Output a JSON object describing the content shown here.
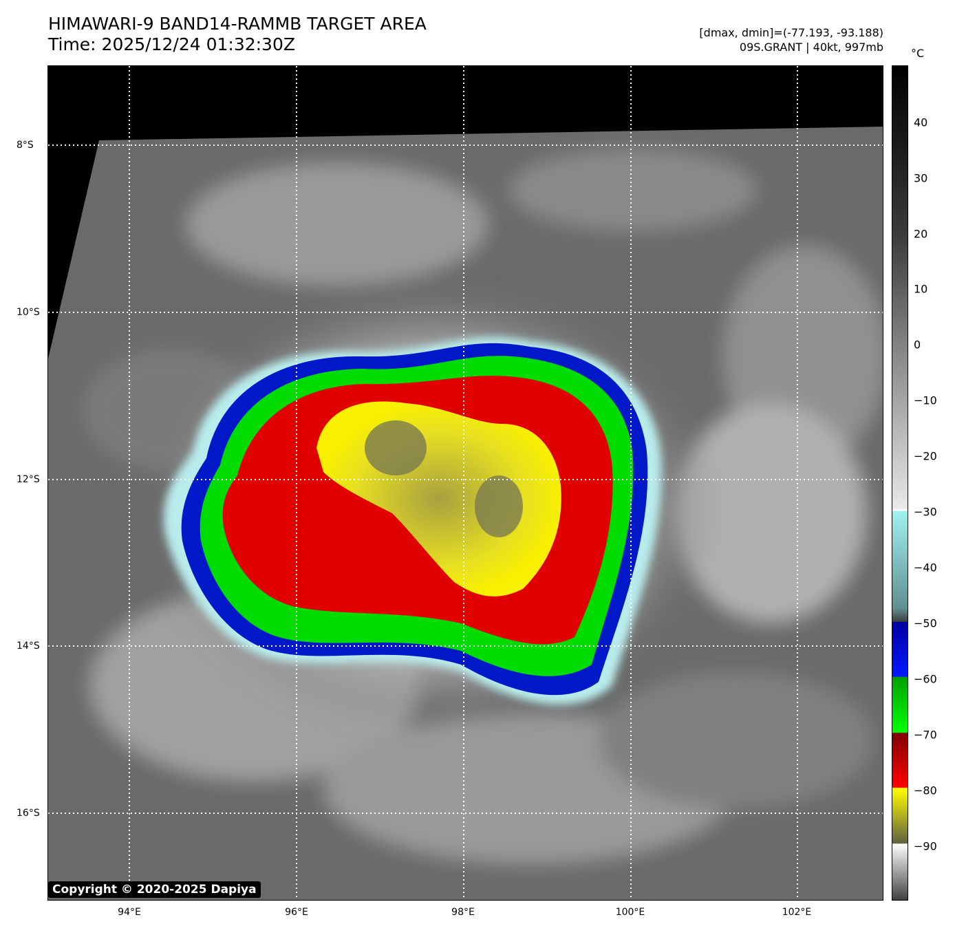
{
  "header": {
    "title_line1": "HIMAWARI-9 BAND14-RAMMB TARGET AREA",
    "title_line2": "Time: 2025/12/24 01:32:30Z",
    "info_line1": "[dmax, dmin]=(-77.193, -93.188)",
    "info_line2": "09S.GRANT | 40kt, 997mb"
  },
  "map": {
    "lon_ticks": [
      "94°E",
      "96°E",
      "98°E",
      "100°E",
      "102°E"
    ],
    "lat_ticks": [
      "8°S",
      "10°S",
      "12°S",
      "14°S",
      "16°S"
    ],
    "gridlines": "dotted white",
    "copyright": "Copyright © 2020-2025 Dapiya"
  },
  "colorbar": {
    "unit": "°C",
    "labels": [
      "40",
      "30",
      "20",
      "10",
      "0",
      "−10",
      "−20",
      "−30",
      "−40",
      "−50",
      "−60",
      "−70",
      "−80",
      "−90"
    ],
    "range": [
      -100,
      50
    ],
    "colors": {
      "warm": "#000000",
      "cold_gray": "#ffffff",
      "cyan": "#a0f0f0",
      "blue": "#0018c8",
      "green": "#00e000",
      "red": "#e00000",
      "yellow": "#f8f000"
    }
  }
}
